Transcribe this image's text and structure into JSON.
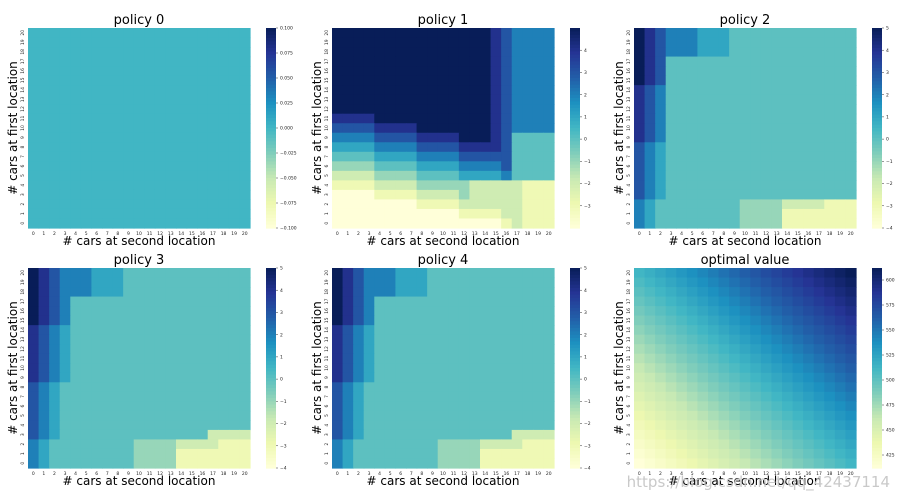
{
  "colors": {
    "ygb": [
      "#ffffd9",
      "#edf8b1",
      "#c7e9b4",
      "#7fcdbb",
      "#41b6c4",
      "#1d91c0",
      "#225ea8",
      "#253494",
      "#081d58"
    ]
  },
  "watermark": "https://blog.csdn.net/qq_42437114",
  "chart_data": [
    {
      "type": "heatmap",
      "title": "policy 0",
      "xlabel": "# cars at second location",
      "ylabel": "# cars at first location",
      "x": [
        0,
        1,
        2,
        3,
        4,
        5,
        6,
        7,
        8,
        9,
        10,
        11,
        12,
        13,
        14,
        15,
        16,
        17,
        18,
        19,
        20
      ],
      "y": [
        20,
        19,
        18,
        17,
        16,
        15,
        14,
        13,
        12,
        11,
        10,
        9,
        8,
        7,
        6,
        5,
        4,
        3,
        2,
        1,
        0
      ],
      "value_rule": "constant 0 for every cell",
      "colorbar": {
        "range": [
          -0.1,
          0.1
        ],
        "ticks": [
          0.1,
          0.075,
          0.05,
          0.025,
          0,
          -0.025,
          -0.05,
          -0.075,
          -0.1
        ],
        "tick_labels": [
          "0.100",
          "0.075",
          "0.050",
          "0.025",
          "0.000",
          "−0.025",
          "−0.050",
          "−0.075",
          "−0.100"
        ]
      }
    },
    {
      "type": "heatmap",
      "title": "policy 1",
      "xlabel": "# cars at second location",
      "ylabel": "# cars at first location",
      "x": [
        0,
        1,
        2,
        3,
        4,
        5,
        6,
        7,
        8,
        9,
        10,
        11,
        12,
        13,
        14,
        15,
        16,
        17,
        18,
        19,
        20
      ],
      "y": [
        20,
        19,
        18,
        17,
        16,
        15,
        14,
        13,
        12,
        11,
        10,
        9,
        8,
        7,
        6,
        5,
        4,
        3,
        2,
        1,
        0
      ],
      "value_rule": "optimal car-rental policy, iteration 1: value = cars moved from first to second location (-4..5), positive in the upper-left block, negative in the lower-right corner",
      "colorbar": {
        "range": [
          -4,
          5
        ],
        "ticks": [
          4,
          3,
          2,
          1,
          0,
          -1,
          -2,
          -3
        ],
        "tick_labels": [
          "4",
          "3",
          "2",
          "1",
          "0",
          "−1",
          "−2",
          "−3"
        ]
      }
    },
    {
      "type": "heatmap",
      "title": "policy 2",
      "xlabel": "# cars at second location",
      "ylabel": "# cars at first location",
      "x": [
        0,
        1,
        2,
        3,
        4,
        5,
        6,
        7,
        8,
        9,
        10,
        11,
        12,
        13,
        14,
        15,
        16,
        17,
        18,
        19,
        20
      ],
      "y": [
        20,
        19,
        18,
        17,
        16,
        15,
        14,
        13,
        12,
        11,
        10,
        9,
        8,
        7,
        6,
        5,
        4,
        3,
        2,
        1,
        0
      ],
      "value_rule": "policy iteration 2: value = cars moved (-4..5)",
      "colorbar": {
        "range": [
          -4,
          5
        ],
        "ticks": [
          5,
          4,
          3,
          2,
          1,
          0,
          -1,
          -2,
          -3,
          -4
        ],
        "tick_labels": [
          "5",
          "4",
          "3",
          "2",
          "1",
          "0",
          "−1",
          "−2",
          "−3",
          "−4"
        ]
      }
    },
    {
      "type": "heatmap",
      "title": "policy 3",
      "xlabel": "# cars at second location",
      "ylabel": "# cars at first location",
      "x": [
        0,
        1,
        2,
        3,
        4,
        5,
        6,
        7,
        8,
        9,
        10,
        11,
        12,
        13,
        14,
        15,
        16,
        17,
        18,
        19,
        20
      ],
      "y": [
        20,
        19,
        18,
        17,
        16,
        15,
        14,
        13,
        12,
        11,
        10,
        9,
        8,
        7,
        6,
        5,
        4,
        3,
        2,
        1,
        0
      ],
      "value_rule": "policy iteration 3: value = cars moved (-4..5)",
      "colorbar": {
        "range": [
          -4,
          5
        ],
        "ticks": [
          5,
          4,
          3,
          2,
          1,
          0,
          -1,
          -2,
          -3,
          -4
        ],
        "tick_labels": [
          "5",
          "4",
          "3",
          "2",
          "1",
          "0",
          "−1",
          "−2",
          "−3",
          "−4"
        ]
      }
    },
    {
      "type": "heatmap",
      "title": "policy 4",
      "xlabel": "# cars at second location",
      "ylabel": "# cars at first location",
      "x": [
        0,
        1,
        2,
        3,
        4,
        5,
        6,
        7,
        8,
        9,
        10,
        11,
        12,
        13,
        14,
        15,
        16,
        17,
        18,
        19,
        20
      ],
      "y": [
        20,
        19,
        18,
        17,
        16,
        15,
        14,
        13,
        12,
        11,
        10,
        9,
        8,
        7,
        6,
        5,
        4,
        3,
        2,
        1,
        0
      ],
      "value_rule": "policy iteration 4 (converged): value = cars moved (-4..5)",
      "colorbar": {
        "range": [
          -4,
          5
        ],
        "ticks": [
          5,
          4,
          3,
          2,
          1,
          0,
          -1,
          -2,
          -3,
          -4
        ],
        "tick_labels": [
          "5",
          "4",
          "3",
          "2",
          "1",
          "0",
          "−1",
          "−2",
          "−3",
          "−4"
        ]
      }
    },
    {
      "type": "heatmap",
      "title": "optimal value",
      "xlabel": "# cars at second location",
      "ylabel": "# cars at first location",
      "x": [
        0,
        1,
        2,
        3,
        4,
        5,
        6,
        7,
        8,
        9,
        10,
        11,
        12,
        13,
        14,
        15,
        16,
        17,
        18,
        19,
        20
      ],
      "y": [
        20,
        19,
        18,
        17,
        16,
        15,
        14,
        13,
        12,
        11,
        10,
        9,
        8,
        7,
        6,
        5,
        4,
        3,
        2,
        1,
        0
      ],
      "value_rule": "state value, rising smoothly from about 412 at (0,0) to about 612 at (20,20)",
      "colorbar": {
        "range": [
          412,
          612
        ],
        "ticks": [
          600,
          575,
          550,
          525,
          500,
          475,
          450,
          425
        ],
        "tick_labels": [
          "600",
          "575",
          "550",
          "525",
          "500",
          "475",
          "450",
          "425"
        ]
      }
    }
  ]
}
